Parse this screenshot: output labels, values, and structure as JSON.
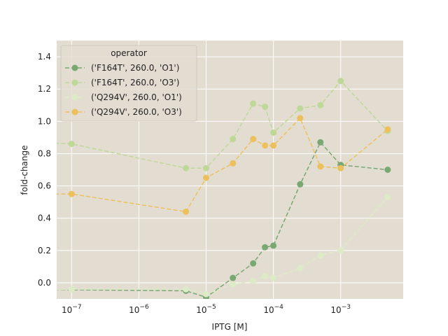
{
  "chart_data": {
    "type": "line",
    "xlabel": "IPTG [M]",
    "ylabel": "fold-change",
    "xscale": "log",
    "xlim": [
      6e-08,
      0.0085
    ],
    "ylim": [
      -0.1,
      1.5
    ],
    "x_tick_values": [
      1e-07,
      1e-06,
      1e-05,
      0.0001,
      0.001
    ],
    "x_tick_labels": [
      {
        "base": "10",
        "exp": "−7"
      },
      {
        "base": "10",
        "exp": "−6"
      },
      {
        "base": "10",
        "exp": "−5"
      },
      {
        "base": "10",
        "exp": "−4"
      },
      {
        "base": "10",
        "exp": "−3"
      }
    ],
    "y_ticks": [
      0.0,
      0.2,
      0.4,
      0.6,
      0.8,
      1.0,
      1.2,
      1.4
    ],
    "y_tick_labels": [
      "0.0",
      "0.2",
      "0.4",
      "0.6",
      "0.8",
      "1.0",
      "1.2",
      "1.4"
    ],
    "grid": true,
    "background": "#e3ddd1",
    "legend": {
      "title": "operator",
      "position": "upper-left"
    },
    "series": [
      {
        "name": "('F164T', 260.0, 'O1')",
        "color": "#7aa872",
        "x": [
          1e-08,
          5e-06,
          1e-05,
          2.5e-05,
          5e-05,
          7.5e-05,
          0.0001,
          0.00025,
          0.0005,
          0.001,
          0.005
        ],
        "y": [
          -0.04,
          -0.05,
          -0.09,
          0.03,
          0.12,
          0.22,
          0.23,
          0.61,
          0.87,
          0.73,
          0.7
        ]
      },
      {
        "name": "('F164T', 260.0, 'O3')",
        "color": "#bed898",
        "x": [
          1e-08,
          1e-07,
          5e-06,
          1e-05,
          2.5e-05,
          5e-05,
          7.5e-05,
          0.0001,
          0.00025,
          0.0005,
          0.001,
          0.005
        ],
        "y": [
          0.88,
          0.86,
          0.71,
          0.71,
          0.89,
          1.11,
          1.09,
          0.93,
          1.08,
          1.1,
          1.25,
          0.94
        ]
      },
      {
        "name": "('Q294V', 260.0, 'O1')",
        "color": "#dcebc6",
        "x": [
          1e-08,
          1e-07,
          5e-06,
          1e-05,
          2.5e-05,
          5e-05,
          7.5e-05,
          0.0001,
          0.00025,
          0.0005,
          0.001,
          0.005
        ],
        "y": [
          -0.05,
          -0.04,
          -0.04,
          -0.07,
          -0.01,
          0.01,
          0.04,
          0.03,
          0.09,
          0.17,
          0.2,
          0.53
        ]
      },
      {
        "name": "('Q294V', 260.0, 'O3')",
        "color": "#edc05e",
        "x": [
          1e-08,
          1e-07,
          5e-06,
          1e-05,
          2.5e-05,
          5e-05,
          7.5e-05,
          0.0001,
          0.00025,
          0.0005,
          0.001,
          0.005
        ],
        "y": [
          0.55,
          0.55,
          0.44,
          0.65,
          0.74,
          0.89,
          0.85,
          0.85,
          1.02,
          0.72,
          0.71,
          0.95
        ]
      }
    ]
  }
}
